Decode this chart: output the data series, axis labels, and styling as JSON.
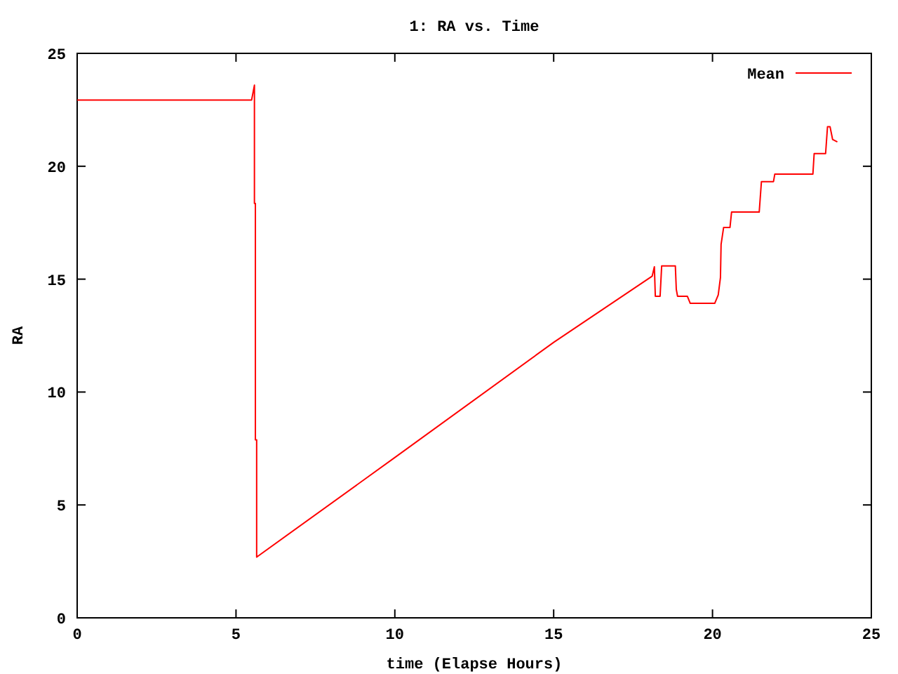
{
  "chart_data": {
    "type": "line",
    "title": "1: RA vs. Time",
    "xlabel": "time (Elapse Hours)",
    "ylabel": "RA",
    "xlim": [
      0,
      25
    ],
    "ylim": [
      0,
      25
    ],
    "xticks": [
      0,
      5,
      10,
      15,
      20,
      25
    ],
    "yticks": [
      0,
      5,
      10,
      15,
      20,
      25
    ],
    "grid": false,
    "legend": "top right",
    "series": [
      {
        "name": "Mean",
        "color": "#ff0000",
        "x": [
          0,
          5.49,
          5.58,
          5.58,
          5.61,
          5.61,
          5.65,
          5.65,
          10,
          15,
          18.1,
          18.17,
          18.2,
          18.26,
          18.35,
          18.4,
          18.83,
          18.86,
          18.9,
          19.21,
          19.3,
          20.07,
          20.18,
          20.25,
          20.27,
          20.35,
          20.55,
          20.6,
          21.47,
          21.54,
          21.92,
          21.96,
          23.16,
          23.2,
          23.56,
          23.62,
          23.7,
          23.78,
          23.93
        ],
        "values": [
          22.93,
          22.93,
          23.59,
          18.35,
          18.35,
          7.88,
          7.88,
          2.69,
          7.1,
          12.2,
          15.13,
          15.55,
          14.24,
          14.24,
          14.24,
          15.59,
          15.59,
          14.55,
          14.24,
          14.24,
          13.93,
          13.93,
          14.3,
          15.07,
          16.54,
          17.29,
          17.29,
          17.97,
          17.97,
          19.32,
          19.32,
          19.65,
          19.65,
          20.56,
          20.56,
          21.75,
          21.75,
          21.19,
          21.08
        ]
      }
    ]
  }
}
